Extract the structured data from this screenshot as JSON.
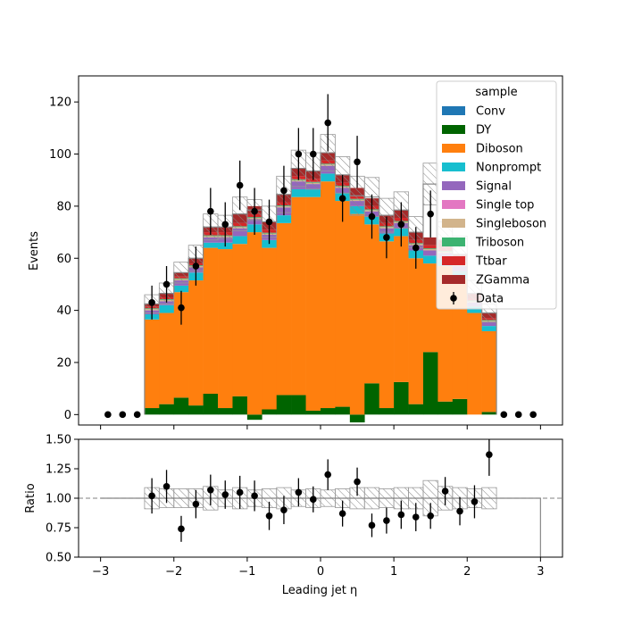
{
  "chart_data": {
    "type": "bar",
    "stacked": true,
    "xlabel": "Leading jet  η",
    "ylabel_main": "Events",
    "ylabel_ratio": "Ratio",
    "xlim": [
      -3.3,
      3.3
    ],
    "ylim_main": [
      -4,
      130
    ],
    "ylim_ratio": [
      0.5,
      1.5
    ],
    "xticks": [
      "−3",
      "−2",
      "−1",
      "0",
      "1",
      "2",
      "3"
    ],
    "xtick_values": [
      -3,
      -2,
      -1,
      0,
      1,
      2,
      3
    ],
    "yticks_main": [
      "0",
      "20",
      "40",
      "60",
      "80",
      "100",
      "120"
    ],
    "ytick_values_main": [
      0,
      20,
      40,
      60,
      80,
      100,
      120
    ],
    "yticks_ratio": [
      "0.50",
      "0.75",
      "1.00",
      "1.25",
      "1.50"
    ],
    "ytick_values_ratio": [
      0.5,
      0.75,
      1.0,
      1.25,
      1.5
    ],
    "legend_title": "sample",
    "legend_position": "upper-right",
    "bin_edges": [
      -3.0,
      -2.8,
      -2.6,
      -2.4,
      -2.2,
      -2.0,
      -1.8,
      -1.6,
      -1.4,
      -1.2,
      -1.0,
      -0.8,
      -0.6,
      -0.4,
      -0.2,
      0.0,
      0.2,
      0.4,
      0.6,
      0.8,
      1.0,
      1.2,
      1.4,
      1.6,
      1.8,
      2.0,
      2.2,
      2.4,
      2.6,
      2.8,
      3.0
    ],
    "series": [
      {
        "name": "Conv",
        "color": "#1f77b4",
        "values": [
          0,
          0,
          0,
          0,
          0,
          0,
          0,
          0,
          0,
          0,
          0,
          0,
          0,
          0,
          0,
          0,
          0,
          0,
          0,
          0,
          0,
          0,
          0,
          0,
          0,
          0,
          0,
          0,
          0,
          0
        ]
      },
      {
        "name": "DY",
        "color": "#006400",
        "values": [
          0,
          0,
          0,
          2.5,
          4,
          6.5,
          3.5,
          8,
          2.5,
          7,
          -2,
          2,
          7.5,
          7.5,
          1.5,
          2.5,
          3,
          -3,
          12,
          2.5,
          12.5,
          4,
          24,
          5,
          6,
          0,
          1,
          0,
          0,
          0
        ]
      },
      {
        "name": "Diboson",
        "color": "#ff7f0e",
        "values": [
          0,
          0,
          0,
          34,
          35,
          40.5,
          48,
          56,
          61,
          58.5,
          70,
          62,
          66,
          76,
          82,
          87,
          79,
          77,
          61,
          64,
          56,
          56,
          34,
          52,
          46,
          39,
          31,
          0,
          0,
          0
        ]
      },
      {
        "name": "Nonprompt",
        "color": "#17becf",
        "values": [
          0,
          0,
          0,
          2,
          3,
          2.5,
          3,
          2,
          2.5,
          3,
          3,
          3,
          3,
          3,
          3,
          3,
          3,
          3,
          3,
          3,
          3,
          3,
          3,
          3,
          3,
          2.5,
          2,
          0,
          0,
          0
        ]
      },
      {
        "name": "Signal",
        "color": "#9467bd",
        "values": [
          0,
          0,
          0,
          1.5,
          1.5,
          2,
          2,
          2,
          2,
          3,
          2,
          2,
          3,
          3,
          2,
          3,
          2,
          2,
          2,
          2,
          2,
          2,
          2,
          2,
          2,
          1.5,
          1.5,
          0,
          0,
          0
        ]
      },
      {
        "name": "Single top",
        "color": "#e377c2",
        "values": [
          0,
          0,
          0,
          0,
          0,
          0,
          0,
          0,
          0,
          0,
          0,
          0,
          0,
          0,
          0,
          0,
          0,
          0,
          0,
          0,
          0,
          0,
          0,
          0,
          0,
          0,
          0,
          0,
          0,
          0
        ]
      },
      {
        "name": "Singleboson",
        "color": "#d2b48c",
        "values": [
          0,
          0,
          0,
          0.5,
          0.5,
          0.5,
          0.5,
          0.5,
          0.5,
          0.5,
          0.5,
          0.5,
          0.5,
          0.5,
          0.5,
          0.5,
          0.5,
          0.5,
          0.5,
          0.5,
          0.5,
          0.5,
          0.5,
          0.5,
          0.5,
          0.5,
          0.5,
          0,
          0,
          0
        ]
      },
      {
        "name": "Triboson",
        "color": "#3cb371",
        "values": [
          0,
          0,
          0,
          0.3,
          0.3,
          0.3,
          0.3,
          0.3,
          0.3,
          0.3,
          0.3,
          0.3,
          0.3,
          0.3,
          0.3,
          0.3,
          0.3,
          0.3,
          0.3,
          0.3,
          0.3,
          0.3,
          0.3,
          0.3,
          0.3,
          0.3,
          0.3,
          0,
          0,
          0
        ]
      },
      {
        "name": "Ttbar",
        "color": "#d62728",
        "values": [
          0,
          0,
          0,
          0.7,
          0.7,
          0.7,
          0.7,
          1.2,
          1.2,
          1.2,
          1.2,
          1.2,
          1.2,
          1.2,
          1.2,
          1.2,
          1.2,
          1.2,
          1.2,
          1.2,
          1.2,
          1.2,
          1.2,
          1.2,
          0.7,
          0.7,
          0.7,
          0,
          0,
          0
        ]
      },
      {
        "name": "ZGamma",
        "color": "#a52a2a",
        "values": [
          0,
          0,
          0,
          1,
          1.5,
          1.5,
          2,
          2,
          2,
          3.5,
          3,
          3,
          3,
          3,
          3,
          3,
          3,
          3,
          3,
          3,
          3,
          3,
          3,
          3,
          3,
          2,
          2,
          0,
          0,
          0
        ]
      }
    ],
    "mc_total": [
      0,
      0,
      0,
      42.5,
      46.5,
      54.5,
      60,
      72,
      72,
      77,
      78.5,
      74,
      84.5,
      94.5,
      93.5,
      100.5,
      92,
      84,
      83.5,
      76.5,
      78.5,
      70,
      88.5,
      67,
      61.5,
      46.5,
      39,
      0,
      0,
      0
    ],
    "mc_unc": [
      0,
      0,
      0,
      3.5,
      4,
      4,
      5,
      5,
      4.5,
      6.5,
      4,
      6,
      7,
      7,
      7,
      7,
      7,
      7.5,
      7.5,
      6.5,
      7,
      6,
      8,
      7,
      7,
      5,
      3.5,
      0,
      0,
      0
    ],
    "data": {
      "name": "Data",
      "color": "#000000",
      "values": [
        0,
        0,
        0,
        43,
        50,
        41,
        57,
        78,
        73,
        88,
        78,
        74,
        86,
        100,
        100,
        112,
        83,
        97,
        76,
        68,
        73,
        64,
        77,
        null,
        null,
        null,
        null,
        0,
        0,
        0
      ],
      "errors": [
        0,
        0,
        0,
        6.5,
        7,
        6.5,
        7.5,
        9,
        8.5,
        9.5,
        9,
        8.5,
        9.5,
        10,
        10,
        11,
        9,
        10,
        8.5,
        8,
        8.5,
        8,
        9,
        null,
        null,
        null,
        null,
        0,
        0,
        0
      ]
    },
    "ratio": {
      "values": [
        null,
        null,
        null,
        1.02,
        1.1,
        0.74,
        0.95,
        1.07,
        1.03,
        1.05,
        1.02,
        0.85,
        0.9,
        1.05,
        0.99,
        1.2,
        0.87,
        1.14,
        0.77,
        0.81,
        0.86,
        0.84,
        0.85,
        1.06,
        0.89,
        0.97,
        1.37,
        null,
        null,
        null
      ],
      "errors": [
        null,
        null,
        null,
        0.15,
        0.14,
        0.11,
        0.12,
        0.13,
        0.12,
        0.14,
        0.13,
        0.12,
        0.12,
        0.12,
        0.11,
        0.13,
        0.11,
        0.12,
        0.1,
        0.11,
        0.12,
        0.12,
        0.11,
        0.12,
        0.12,
        0.14,
        0.18,
        null,
        null,
        null
      ],
      "mc_unc_rel": [
        0,
        0,
        0,
        0.09,
        0.08,
        0.08,
        0.08,
        0.1,
        0.07,
        0.09,
        0.07,
        0.08,
        0.09,
        0.07,
        0.08,
        0.07,
        0.08,
        0.09,
        0.09,
        0.08,
        0.09,
        0.09,
        0.15,
        0.1,
        0.09,
        0.08,
        0.09,
        0,
        0,
        0
      ],
      "reference_line": 1.0
    }
  }
}
